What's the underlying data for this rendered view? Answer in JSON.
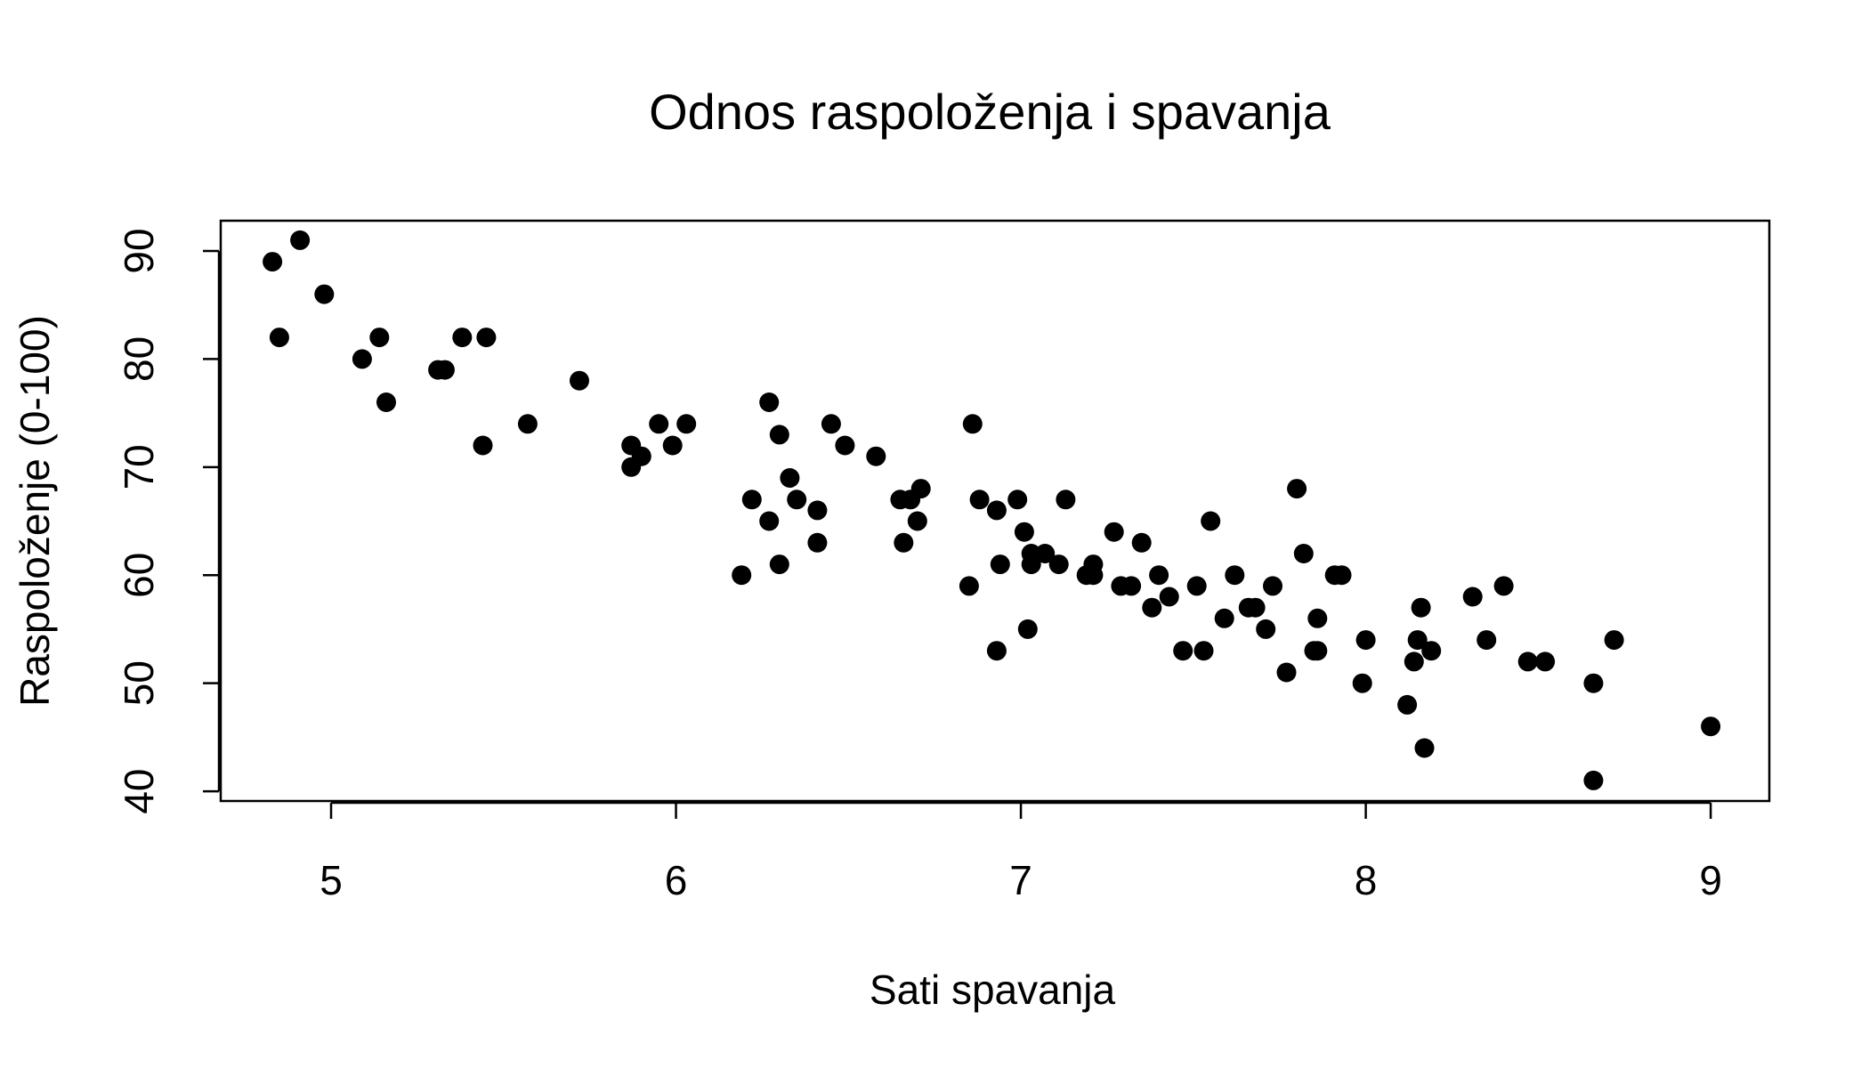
{
  "chart_data": {
    "type": "scatter",
    "title": "Odnos raspoloženja i spavanja",
    "xlabel": "Sati spavanja",
    "ylabel": "Raspoloženje (0-100)",
    "xlim": [
      4.68,
      9.17
    ],
    "ylim": [
      39.1,
      92.8
    ],
    "xticks": [
      5,
      6,
      7,
      8,
      9
    ],
    "yticks": [
      40,
      50,
      60,
      70,
      80,
      90
    ],
    "marker_color": "#000000",
    "grid": false,
    "points": [
      {
        "x": 4.83,
        "y": 89
      },
      {
        "x": 4.91,
        "y": 91
      },
      {
        "x": 4.85,
        "y": 82
      },
      {
        "x": 4.98,
        "y": 86
      },
      {
        "x": 5.09,
        "y": 80
      },
      {
        "x": 5.14,
        "y": 82
      },
      {
        "x": 5.16,
        "y": 76
      },
      {
        "x": 5.31,
        "y": 79
      },
      {
        "x": 5.33,
        "y": 79
      },
      {
        "x": 5.38,
        "y": 82
      },
      {
        "x": 5.45,
        "y": 82
      },
      {
        "x": 5.44,
        "y": 72
      },
      {
        "x": 5.57,
        "y": 74
      },
      {
        "x": 5.72,
        "y": 78
      },
      {
        "x": 5.87,
        "y": 72
      },
      {
        "x": 5.87,
        "y": 70
      },
      {
        "x": 5.9,
        "y": 71
      },
      {
        "x": 5.95,
        "y": 74
      },
      {
        "x": 5.99,
        "y": 72
      },
      {
        "x": 6.03,
        "y": 74
      },
      {
        "x": 6.19,
        "y": 60
      },
      {
        "x": 6.22,
        "y": 67
      },
      {
        "x": 6.27,
        "y": 65
      },
      {
        "x": 6.27,
        "y": 76
      },
      {
        "x": 6.3,
        "y": 73
      },
      {
        "x": 6.3,
        "y": 61
      },
      {
        "x": 6.33,
        "y": 69
      },
      {
        "x": 6.35,
        "y": 67
      },
      {
        "x": 6.41,
        "y": 66
      },
      {
        "x": 6.41,
        "y": 63
      },
      {
        "x": 6.45,
        "y": 74
      },
      {
        "x": 6.49,
        "y": 72
      },
      {
        "x": 6.58,
        "y": 71
      },
      {
        "x": 6.65,
        "y": 67
      },
      {
        "x": 6.66,
        "y": 63
      },
      {
        "x": 6.68,
        "y": 67
      },
      {
        "x": 6.7,
        "y": 65
      },
      {
        "x": 6.71,
        "y": 68
      },
      {
        "x": 6.85,
        "y": 59
      },
      {
        "x": 6.86,
        "y": 74
      },
      {
        "x": 6.88,
        "y": 67
      },
      {
        "x": 6.93,
        "y": 66
      },
      {
        "x": 6.93,
        "y": 53
      },
      {
        "x": 6.94,
        "y": 61
      },
      {
        "x": 6.99,
        "y": 67
      },
      {
        "x": 7.01,
        "y": 64
      },
      {
        "x": 7.02,
        "y": 55
      },
      {
        "x": 7.03,
        "y": 62
      },
      {
        "x": 7.03,
        "y": 61
      },
      {
        "x": 7.07,
        "y": 62
      },
      {
        "x": 7.11,
        "y": 61
      },
      {
        "x": 7.13,
        "y": 67
      },
      {
        "x": 7.19,
        "y": 60
      },
      {
        "x": 7.21,
        "y": 61
      },
      {
        "x": 7.21,
        "y": 60
      },
      {
        "x": 7.27,
        "y": 64
      },
      {
        "x": 7.29,
        "y": 59
      },
      {
        "x": 7.32,
        "y": 59
      },
      {
        "x": 7.35,
        "y": 63
      },
      {
        "x": 7.38,
        "y": 57
      },
      {
        "x": 7.4,
        "y": 60
      },
      {
        "x": 7.43,
        "y": 58
      },
      {
        "x": 7.47,
        "y": 53
      },
      {
        "x": 7.51,
        "y": 59
      },
      {
        "x": 7.53,
        "y": 53
      },
      {
        "x": 7.55,
        "y": 65
      },
      {
        "x": 7.59,
        "y": 56
      },
      {
        "x": 7.62,
        "y": 60
      },
      {
        "x": 7.66,
        "y": 57
      },
      {
        "x": 7.68,
        "y": 57
      },
      {
        "x": 7.71,
        "y": 55
      },
      {
        "x": 7.73,
        "y": 59
      },
      {
        "x": 7.77,
        "y": 51
      },
      {
        "x": 7.8,
        "y": 68
      },
      {
        "x": 7.82,
        "y": 62
      },
      {
        "x": 7.85,
        "y": 53
      },
      {
        "x": 7.86,
        "y": 56
      },
      {
        "x": 7.86,
        "y": 53
      },
      {
        "x": 7.91,
        "y": 60
      },
      {
        "x": 7.93,
        "y": 60
      },
      {
        "x": 7.99,
        "y": 50
      },
      {
        "x": 8.0,
        "y": 54
      },
      {
        "x": 8.12,
        "y": 48
      },
      {
        "x": 8.14,
        "y": 52
      },
      {
        "x": 8.15,
        "y": 54
      },
      {
        "x": 8.16,
        "y": 57
      },
      {
        "x": 8.17,
        "y": 44
      },
      {
        "x": 8.19,
        "y": 53
      },
      {
        "x": 8.31,
        "y": 58
      },
      {
        "x": 8.35,
        "y": 54
      },
      {
        "x": 8.4,
        "y": 59
      },
      {
        "x": 8.47,
        "y": 52
      },
      {
        "x": 8.52,
        "y": 52
      },
      {
        "x": 8.66,
        "y": 50
      },
      {
        "x": 8.66,
        "y": 41
      },
      {
        "x": 8.72,
        "y": 54
      },
      {
        "x": 9.0,
        "y": 46
      }
    ]
  }
}
